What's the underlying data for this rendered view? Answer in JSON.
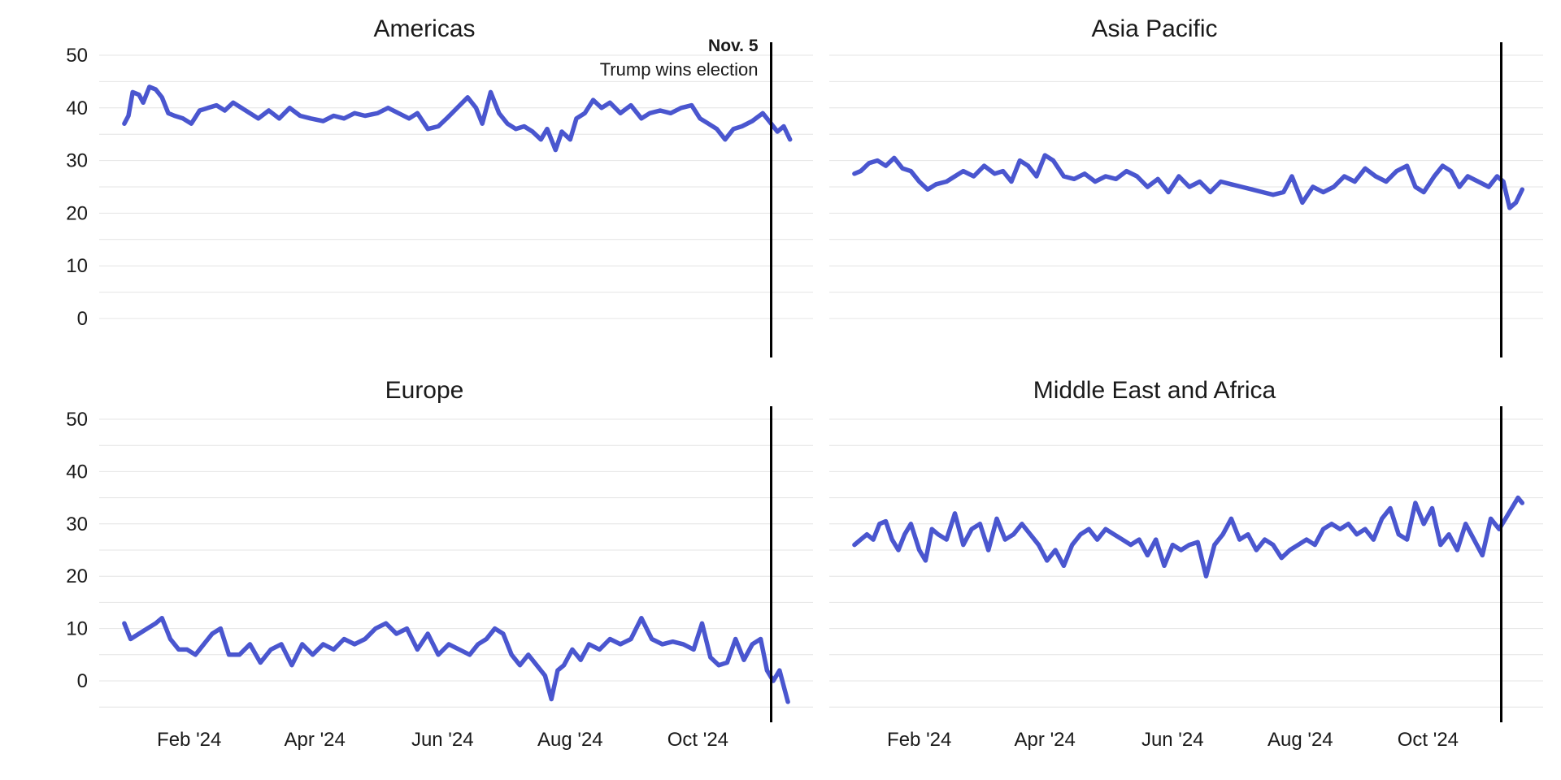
{
  "chart_data": [
    {
      "type": "line",
      "title": "Americas",
      "ylim": [
        -5,
        50
      ],
      "yticks": [
        0,
        10,
        20,
        30,
        40,
        50
      ],
      "xlim": [
        "2023-12-20",
        "2024-11-25"
      ],
      "xticks": [
        {
          "date": "2024-02-01",
          "label": "Feb '24"
        },
        {
          "date": "2024-04-01",
          "label": "Apr '24"
        },
        {
          "date": "2024-06-01",
          "label": "Jun '24"
        },
        {
          "date": "2024-08-01",
          "label": "Aug '24"
        },
        {
          "date": "2024-10-01",
          "label": "Oct '24"
        }
      ],
      "show_xtick_labels": false,
      "show_ytick_labels": true,
      "grid": true,
      "color": "#4a56cf",
      "event": {
        "date": "2024-11-05",
        "label": "Nov. 5",
        "text": "Trump wins election",
        "show_label": true
      },
      "series": [
        {
          "x": [
            "2024-01-01",
            "2024-01-03",
            "2024-01-05",
            "2024-01-08",
            "2024-01-10",
            "2024-01-13",
            "2024-01-16",
            "2024-01-19",
            "2024-01-22",
            "2024-01-25",
            "2024-01-29",
            "2024-02-02",
            "2024-02-06",
            "2024-02-10",
            "2024-02-14",
            "2024-02-18",
            "2024-02-22",
            "2024-02-26",
            "2024-03-01",
            "2024-03-05",
            "2024-03-10",
            "2024-03-15",
            "2024-03-20",
            "2024-03-25",
            "2024-03-30",
            "2024-04-05",
            "2024-04-10",
            "2024-04-15",
            "2024-04-20",
            "2024-04-25",
            "2024-05-01",
            "2024-05-06",
            "2024-05-11",
            "2024-05-16",
            "2024-05-20",
            "2024-05-25",
            "2024-05-30",
            "2024-06-03",
            "2024-06-08",
            "2024-06-13",
            "2024-06-17",
            "2024-06-20",
            "2024-06-24",
            "2024-06-28",
            "2024-07-02",
            "2024-07-06",
            "2024-07-10",
            "2024-07-14",
            "2024-07-18",
            "2024-07-21",
            "2024-07-25",
            "2024-07-28",
            "2024-08-01",
            "2024-08-04",
            "2024-08-08",
            "2024-08-12",
            "2024-08-16",
            "2024-08-20",
            "2024-08-25",
            "2024-08-30",
            "2024-09-04",
            "2024-09-08",
            "2024-09-13",
            "2024-09-18",
            "2024-09-23",
            "2024-09-28",
            "2024-10-02",
            "2024-10-06",
            "2024-10-10",
            "2024-10-14",
            "2024-10-18",
            "2024-10-22",
            "2024-10-27",
            "2024-11-01",
            "2024-11-05",
            "2024-11-08",
            "2024-11-11",
            "2024-11-14"
          ],
          "y": [
            37,
            38.5,
            43,
            42.5,
            41,
            44,
            43.5,
            42,
            39,
            38.5,
            38,
            37,
            39.5,
            40,
            40.5,
            39.5,
            41,
            40,
            39,
            38,
            39.5,
            38,
            40,
            38.5,
            38,
            37.5,
            38.5,
            38,
            39,
            38.5,
            39,
            40,
            39,
            38,
            39,
            36,
            36.5,
            38,
            40,
            42,
            40,
            37,
            43,
            39,
            37,
            36,
            36.5,
            35.5,
            34,
            36,
            32,
            35.5,
            34,
            38,
            39,
            41.5,
            40,
            41,
            39,
            40.5,
            38,
            39,
            39.5,
            39,
            40,
            40.5,
            38,
            37,
            36,
            34,
            36,
            36.5,
            37.5,
            39,
            37,
            35.5,
            36.5,
            34
          ]
        }
      ]
    },
    {
      "type": "line",
      "title": "Asia Pacific",
      "ylim": [
        -5,
        50
      ],
      "yticks": [
        0,
        10,
        20,
        30,
        40,
        50
      ],
      "xlim": [
        "2023-12-20",
        "2024-11-25"
      ],
      "xticks": [
        {
          "date": "2024-02-01",
          "label": "Feb '24"
        },
        {
          "date": "2024-04-01",
          "label": "Apr '24"
        },
        {
          "date": "2024-06-01",
          "label": "Jun '24"
        },
        {
          "date": "2024-08-01",
          "label": "Aug '24"
        },
        {
          "date": "2024-10-01",
          "label": "Oct '24"
        }
      ],
      "show_xtick_labels": false,
      "show_ytick_labels": false,
      "grid": true,
      "color": "#4a56cf",
      "event": {
        "date": "2024-11-05",
        "label": "",
        "text": "",
        "show_label": false
      },
      "series": [
        {
          "x": [
            "2024-01-01",
            "2024-01-04",
            "2024-01-08",
            "2024-01-12",
            "2024-01-16",
            "2024-01-20",
            "2024-01-24",
            "2024-01-28",
            "2024-02-01",
            "2024-02-05",
            "2024-02-09",
            "2024-02-14",
            "2024-02-18",
            "2024-02-22",
            "2024-02-27",
            "2024-03-03",
            "2024-03-08",
            "2024-03-12",
            "2024-03-16",
            "2024-03-20",
            "2024-03-24",
            "2024-03-28",
            "2024-04-01",
            "2024-04-05",
            "2024-04-10",
            "2024-04-15",
            "2024-04-20",
            "2024-04-25",
            "2024-04-30",
            "2024-05-05",
            "2024-05-10",
            "2024-05-15",
            "2024-05-20",
            "2024-05-25",
            "2024-05-30",
            "2024-06-04",
            "2024-06-09",
            "2024-06-14",
            "2024-06-19",
            "2024-06-24",
            "2024-06-29",
            "2024-07-04",
            "2024-07-09",
            "2024-07-14",
            "2024-07-19",
            "2024-07-24",
            "2024-07-28",
            "2024-08-02",
            "2024-08-07",
            "2024-08-12",
            "2024-08-17",
            "2024-08-22",
            "2024-08-27",
            "2024-09-01",
            "2024-09-06",
            "2024-09-11",
            "2024-09-16",
            "2024-09-21",
            "2024-09-25",
            "2024-09-29",
            "2024-10-04",
            "2024-10-08",
            "2024-10-12",
            "2024-10-16",
            "2024-10-20",
            "2024-10-25",
            "2024-10-30",
            "2024-11-03",
            "2024-11-06",
            "2024-11-09",
            "2024-11-12",
            "2024-11-15"
          ],
          "y": [
            27.5,
            28,
            29.5,
            30,
            29,
            30.5,
            28.5,
            28,
            26,
            24.5,
            25.5,
            26,
            27,
            28,
            27,
            29,
            27.5,
            28,
            26,
            30,
            29,
            27,
            31,
            30,
            27,
            26.5,
            27.5,
            26,
            27,
            26.5,
            28,
            27,
            25,
            26.5,
            24,
            27,
            25,
            26,
            24,
            26,
            25.5,
            25,
            24.5,
            24,
            23.5,
            24,
            27,
            22,
            25,
            24,
            25,
            27,
            26,
            28.5,
            27,
            26,
            28,
            29,
            25,
            24,
            27,
            29,
            28,
            25,
            27,
            26,
            25,
            27,
            26,
            21,
            22,
            24.5
          ]
        }
      ]
    },
    {
      "type": "line",
      "title": "Europe",
      "ylim": [
        -8,
        50
      ],
      "yticks": [
        0,
        10,
        20,
        30,
        40,
        50
      ],
      "xlim": [
        "2023-12-20",
        "2024-11-25"
      ],
      "xticks": [
        {
          "date": "2024-02-01",
          "label": "Feb '24"
        },
        {
          "date": "2024-04-01",
          "label": "Apr '24"
        },
        {
          "date": "2024-06-01",
          "label": "Jun '24"
        },
        {
          "date": "2024-08-01",
          "label": "Aug '24"
        },
        {
          "date": "2024-10-01",
          "label": "Oct '24"
        }
      ],
      "show_xtick_labels": true,
      "show_ytick_labels": true,
      "grid": true,
      "color": "#4a56cf",
      "event": {
        "date": "2024-11-05",
        "label": "",
        "text": "",
        "show_label": false
      },
      "series": [
        {
          "x": [
            "2024-01-01",
            "2024-01-04",
            "2024-01-08",
            "2024-01-12",
            "2024-01-16",
            "2024-01-19",
            "2024-01-23",
            "2024-01-27",
            "2024-01-31",
            "2024-02-04",
            "2024-02-08",
            "2024-02-12",
            "2024-02-16",
            "2024-02-20",
            "2024-02-25",
            "2024-03-01",
            "2024-03-06",
            "2024-03-11",
            "2024-03-16",
            "2024-03-21",
            "2024-03-26",
            "2024-03-31",
            "2024-04-05",
            "2024-04-10",
            "2024-04-15",
            "2024-04-20",
            "2024-04-25",
            "2024-04-30",
            "2024-05-05",
            "2024-05-10",
            "2024-05-15",
            "2024-05-20",
            "2024-05-25",
            "2024-05-30",
            "2024-06-04",
            "2024-06-09",
            "2024-06-14",
            "2024-06-18",
            "2024-06-22",
            "2024-06-26",
            "2024-06-30",
            "2024-07-04",
            "2024-07-08",
            "2024-07-12",
            "2024-07-16",
            "2024-07-20",
            "2024-07-23",
            "2024-07-26",
            "2024-07-29",
            "2024-08-02",
            "2024-08-06",
            "2024-08-10",
            "2024-08-15",
            "2024-08-20",
            "2024-08-25",
            "2024-08-30",
            "2024-09-04",
            "2024-09-09",
            "2024-09-14",
            "2024-09-19",
            "2024-09-24",
            "2024-09-29",
            "2024-10-03",
            "2024-10-07",
            "2024-10-11",
            "2024-10-15",
            "2024-10-19",
            "2024-10-23",
            "2024-10-27",
            "2024-10-31",
            "2024-11-03",
            "2024-11-06",
            "2024-11-09",
            "2024-11-13"
          ],
          "y": [
            11,
            8,
            9,
            10,
            11,
            12,
            8,
            6,
            6,
            5,
            7,
            9,
            10,
            5,
            5,
            7,
            3.5,
            6,
            7,
            3,
            7,
            5,
            7,
            6,
            8,
            7,
            8,
            10,
            11,
            9,
            10,
            6,
            9,
            5,
            7,
            6,
            5,
            7,
            8,
            10,
            9,
            5,
            3,
            5,
            3,
            1,
            -3.5,
            2,
            3,
            6,
            4,
            7,
            6,
            8,
            7,
            8,
            12,
            8,
            7,
            7.5,
            7,
            6,
            11,
            4.5,
            3,
            3.5,
            8,
            4,
            7,
            8,
            2,
            0,
            2,
            -4
          ]
        }
      ]
    },
    {
      "type": "line",
      "title": "Middle East and Africa",
      "ylim": [
        -8,
        50
      ],
      "yticks": [
        0,
        10,
        20,
        30,
        40,
        50
      ],
      "xlim": [
        "2023-12-20",
        "2024-11-25"
      ],
      "xticks": [
        {
          "date": "2024-02-01",
          "label": "Feb '24"
        },
        {
          "date": "2024-04-01",
          "label": "Apr '24"
        },
        {
          "date": "2024-06-01",
          "label": "Jun '24"
        },
        {
          "date": "2024-08-01",
          "label": "Aug '24"
        },
        {
          "date": "2024-10-01",
          "label": "Oct '24"
        }
      ],
      "show_xtick_labels": true,
      "show_ytick_labels": false,
      "grid": true,
      "color": "#4a56cf",
      "event": {
        "date": "2024-11-05",
        "label": "",
        "text": "",
        "show_label": false
      },
      "series": [
        {
          "x": [
            "2024-01-01",
            "2024-01-04",
            "2024-01-07",
            "2024-01-10",
            "2024-01-13",
            "2024-01-16",
            "2024-01-19",
            "2024-01-22",
            "2024-01-25",
            "2024-01-28",
            "2024-02-01",
            "2024-02-04",
            "2024-02-07",
            "2024-02-10",
            "2024-02-14",
            "2024-02-18",
            "2024-02-22",
            "2024-02-26",
            "2024-03-01",
            "2024-03-05",
            "2024-03-09",
            "2024-03-13",
            "2024-03-17",
            "2024-03-21",
            "2024-03-25",
            "2024-03-29",
            "2024-04-02",
            "2024-04-06",
            "2024-04-10",
            "2024-04-14",
            "2024-04-18",
            "2024-04-22",
            "2024-04-26",
            "2024-04-30",
            "2024-05-04",
            "2024-05-08",
            "2024-05-12",
            "2024-05-16",
            "2024-05-20",
            "2024-05-24",
            "2024-05-28",
            "2024-06-01",
            "2024-06-05",
            "2024-06-09",
            "2024-06-13",
            "2024-06-17",
            "2024-06-21",
            "2024-06-25",
            "2024-06-29",
            "2024-07-03",
            "2024-07-07",
            "2024-07-11",
            "2024-07-15",
            "2024-07-19",
            "2024-07-23",
            "2024-07-27",
            "2024-07-31",
            "2024-08-04",
            "2024-08-08",
            "2024-08-12",
            "2024-08-16",
            "2024-08-20",
            "2024-08-24",
            "2024-08-28",
            "2024-09-01",
            "2024-09-05",
            "2024-09-09",
            "2024-09-13",
            "2024-09-17",
            "2024-09-21",
            "2024-09-25",
            "2024-09-29",
            "2024-10-03",
            "2024-10-07",
            "2024-10-11",
            "2024-10-15",
            "2024-10-19",
            "2024-10-23",
            "2024-10-27",
            "2024-10-31",
            "2024-11-04",
            "2024-11-07",
            "2024-11-10",
            "2024-11-13",
            "2024-11-15"
          ],
          "y": [
            26,
            27,
            28,
            27,
            30,
            30.5,
            27,
            25,
            28,
            30,
            25,
            23,
            29,
            28,
            27,
            32,
            26,
            29,
            30,
            25,
            31,
            27,
            28,
            30,
            28,
            26,
            23,
            25,
            22,
            26,
            28,
            29,
            27,
            29,
            28,
            27,
            26,
            27,
            24,
            27,
            22,
            26,
            25,
            26,
            26.5,
            20,
            26,
            28,
            31,
            27,
            28,
            25,
            27,
            26,
            23.5,
            25,
            26,
            27,
            26,
            29,
            30,
            29,
            30,
            28,
            29,
            27,
            31,
            33,
            28,
            27,
            34,
            30,
            33,
            26,
            28,
            25,
            30,
            27,
            24,
            31,
            29,
            31,
            33,
            35,
            34
          ]
        }
      ]
    }
  ]
}
